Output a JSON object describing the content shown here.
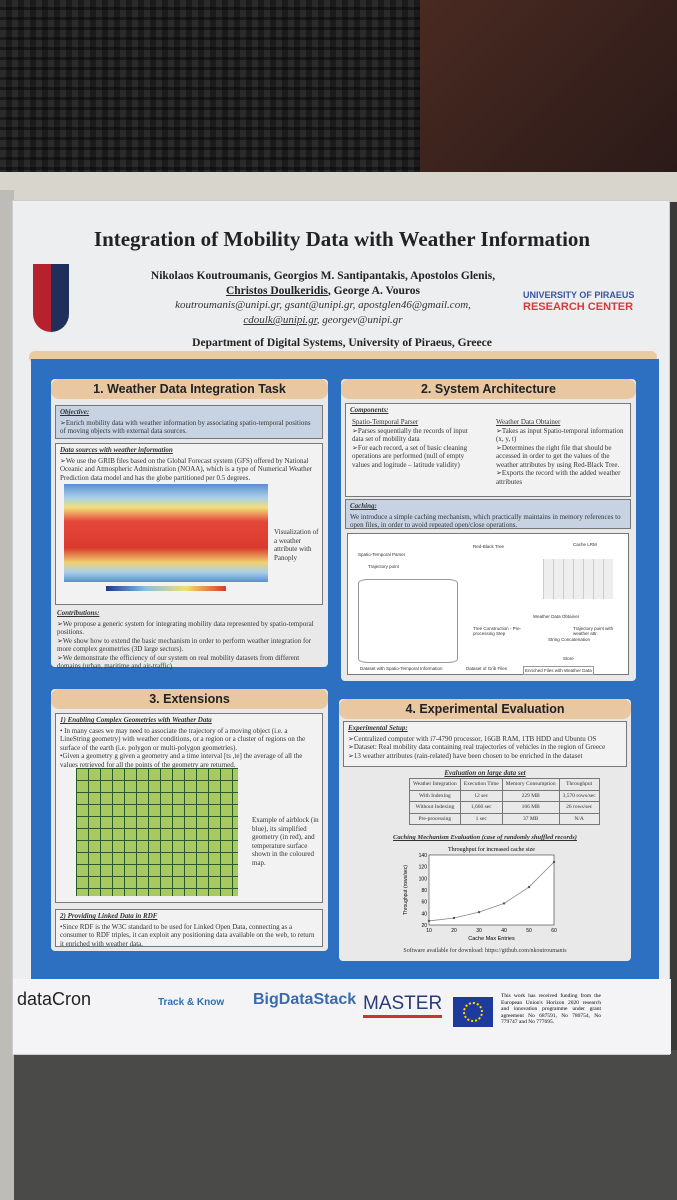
{
  "poster": {
    "title": "Integration of Mobility Data with Weather Information",
    "authors_line1": "Nikolaos Koutroumanis, Georgios M. Santipantakis, Apostolos Glenis,",
    "authors_presenter": "Christos Doulkeridis",
    "authors_line2_rest": ", George A. Vouros",
    "emails_line1": "koutroumanis@unipi.gr, gsant@unipi.gr, apostglen46@gmail.com,",
    "emails_presenter": "cdoulk@unipi.gr",
    "emails_line2_rest": ", georgev@unipi.gr",
    "research_center_top": "UNIVERSITY OF PIRAEUS",
    "research_center_bottom": "RESEARCH CENTER",
    "department": "Department of Digital Systems, University of Piraeus, Greece"
  },
  "section1": {
    "title": "1. Weather Data Integration Task",
    "objective_label": "Objective:",
    "objective": "➢Enrich mobility data with weather information by associating spatio-temporal positions of moving objects with external data sources.",
    "sources_label": "Data sources with weather information",
    "sources": "➢We use the GRIB files based on the Global Forecast system (GFS) offered by National Oceanic and Atmospheric Administration (NOAA), which is a type of Numerical Weather Prediction data model and has the globe partitioned per 0.5 degrees.",
    "map_caption": "Visualization of a weather attribute with Panoply",
    "contrib_label": "Contributions:",
    "contributions": [
      "➢We propose a generic system for integrating mobility data represented by spatio-temporal positions.",
      "➢We show how to extend the basic mechanism in order to perform weather integration for more complex geometries (3D large sectors).",
      "➢We demonstrate the efficiency of our system on real mobility datasets from different domains (urban, maritime and air-traffic)."
    ]
  },
  "section2": {
    "title": "2. System Architecture",
    "components_label": "Components:",
    "parser_title": "Spatio-Temporal Parser",
    "parser_items": [
      "➢Parses sequentially the records of input data set of mobility data",
      "➢For each record, a set of basic cleaning operations are performed (null of empty values and logitude – latitude validity)"
    ],
    "obtainer_title": "Weather Data Obtainer",
    "obtainer_items": [
      "➢Takes as input Spatio-temporal information (x, y, t)",
      "➢Determines the right file that should be accessed in order to get the values of the weather attributes by using Red-Black Tree.",
      "➢Exports the record with the added weather attributes"
    ],
    "caching_label": "Caching:",
    "caching": "We introduce a simple caching mechanism, which practically maintains in memory references to open files, in order to avoid repeated open/close operations.",
    "diagram_labels": [
      "Spatio-Temporal Parser",
      "Trajectory point",
      "Red-Black Tree",
      "Cache LRM",
      "Weather Data Obtainer",
      "Tree Construction - Pre-processing Step",
      "Trajectory point with weather attr.",
      "String Concatenation",
      "Store",
      "Dataset with Spatio-Temporal Information",
      "Dataset of Grib Files",
      "Enriched Files with Weather Data"
    ]
  },
  "section3": {
    "title": "3. Extensions",
    "sub1_label": "1) Enabling Complex Geometries with Weather Data",
    "sub1_items": [
      "• In many cases we may need to associate the trajectory of a moving object (i.e. a LineString geometry) with weather conditions, or a region or a cluster of regions on the surface of the earth (i.e. polygon or multi-polygon geometries).",
      "•Given a geometry g  given a geometry  and a time interval [ts ,te] the average of all the values retrieved for all the points of the geometry are returned."
    ],
    "map_caption": "Example of airblock (in blue), its simplified geometry (in red), and temperature surface shown in the coloured map.",
    "sub2_label": "2) Providing Linked Data in RDF",
    "sub2_text": "•Since RDF is the W3C standard to be used for Linked Open Data, connecting as a consumer to RDF triples, it can exploit any positioning data available on the web, to return it enriched with weather data."
  },
  "section4": {
    "title": "4. Experimental Evaluation",
    "setup_label": "Experimental Setup:",
    "setup_items": [
      "➢Centralized computer with i7-4790 processor, 16GB RAM, 1TB HDD and Ubuntu OS",
      "➢Dataset: Real mobility data containing real trajectories of vehicles in the region of Greece",
      "➢13 weather attributes (rain-related) have been chosen to be enriched in the dataset"
    ],
    "table_title": "Evaluation on large data set",
    "table_headers": [
      "Weather Integration",
      "Execution Time",
      "Memory Consumption",
      "Throughput"
    ],
    "table_rows": [
      [
        "With Indexing",
        "12 sec",
        "229 MB",
        "3,570 rows/sec"
      ],
      [
        "Without Indexing",
        "1,660 sec",
        "166 MB",
        "26 rows/sec"
      ],
      [
        "Pre-processing",
        "1 sec",
        "37 MB",
        "N/A"
      ]
    ],
    "cache_label": "Caching Mechanism Evaluation (case of randomly shuffled records)",
    "software": "Software available for download: https://github.com/nkoutroumanis"
  },
  "chart_data": {
    "type": "line",
    "title": "Throughput for increased cache size",
    "xlabel": "Cache Max Entries",
    "ylabel": "Throughput (rows/sec)",
    "x": [
      10,
      20,
      30,
      40,
      50,
      60
    ],
    "series": [
      {
        "name": "Throughput",
        "values": [
          27,
          32,
          42,
          57,
          85,
          128
        ]
      }
    ],
    "xlim": [
      10,
      60
    ],
    "ylim": [
      20,
      140
    ],
    "xticks": [
      "10",
      "20",
      "30",
      "40",
      "50",
      "60"
    ],
    "yticks": [
      "20",
      "40",
      "60",
      "80",
      "100",
      "120",
      "140"
    ]
  },
  "footer": {
    "logos": [
      "dataCron",
      "Track & Know",
      "BigDataStack",
      "MASTER"
    ],
    "funding": "This work has received funding from the European Union's Horizon 2020 research and innovation programme under grant agreement No 687591, No 780754, No 779747 and No 777695."
  }
}
